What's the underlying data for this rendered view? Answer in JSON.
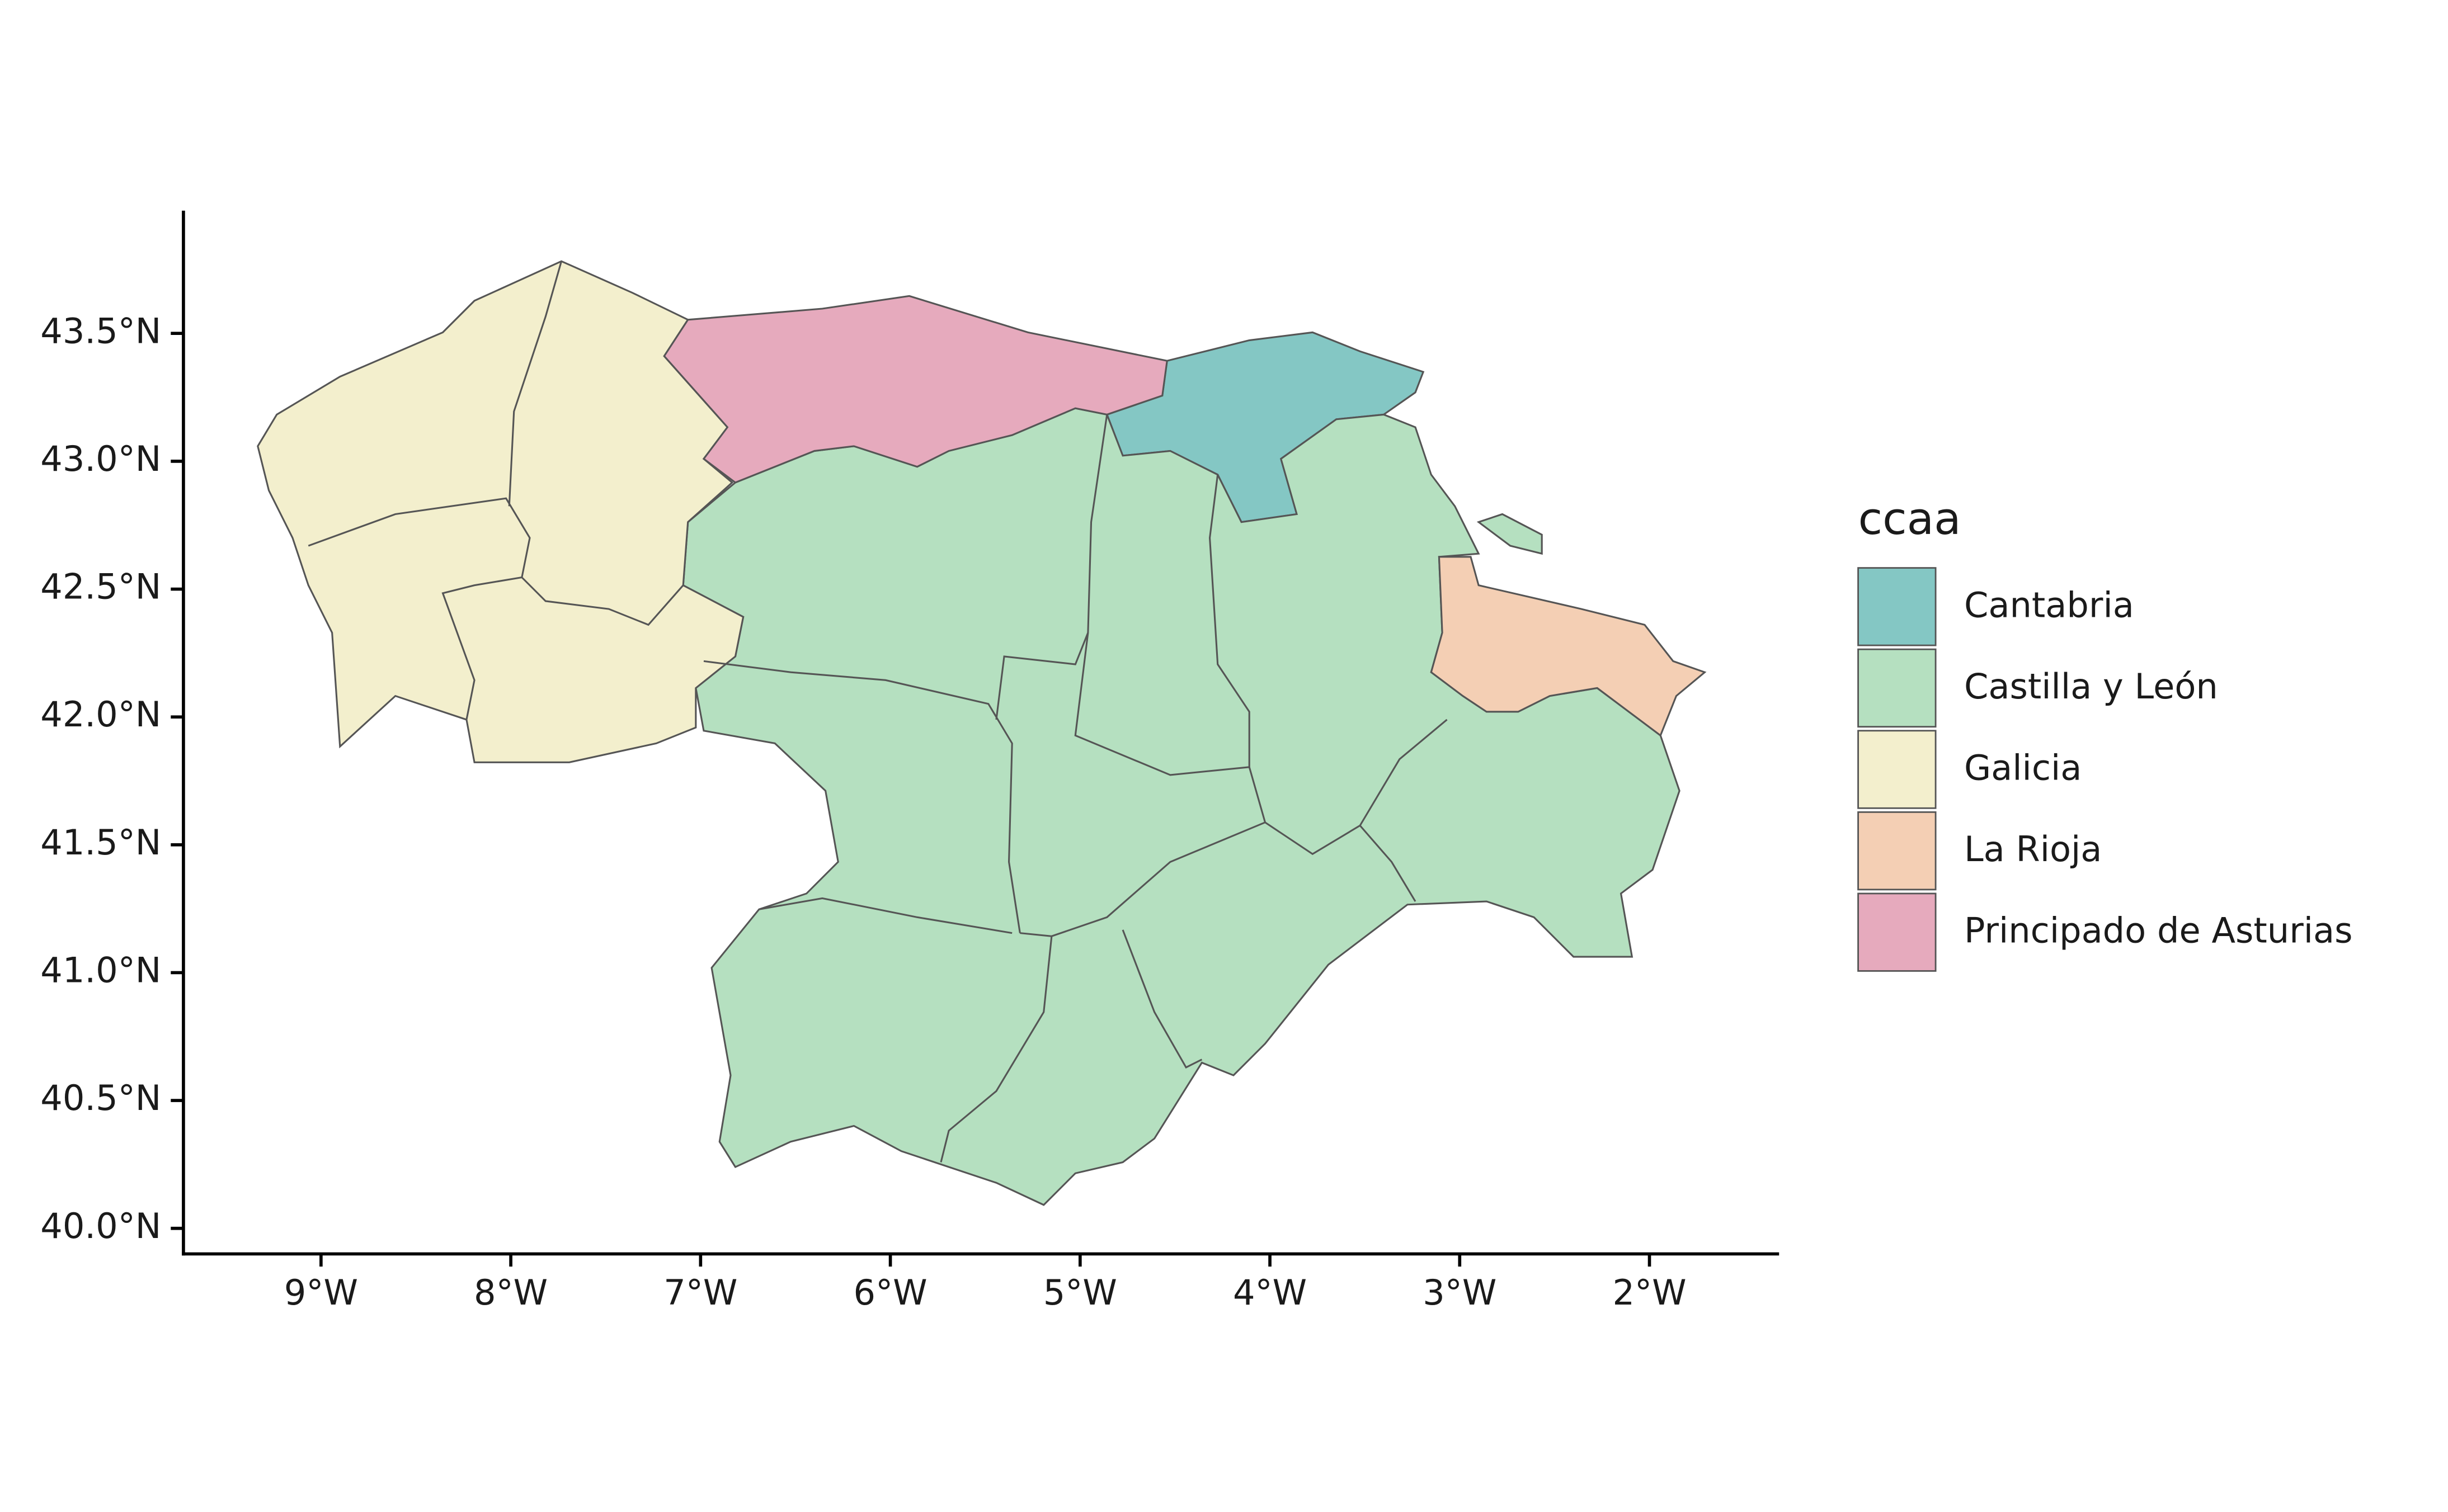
{
  "chart_data": {
    "type": "map",
    "xlim": [
      -9.725,
      -1.317
    ],
    "ylim": [
      39.9,
      43.98
    ],
    "xticks": [
      {
        "value": -9,
        "label": "9°W"
      },
      {
        "value": -8,
        "label": "8°W"
      },
      {
        "value": -7,
        "label": "7°W"
      },
      {
        "value": -6,
        "label": "6°W"
      },
      {
        "value": -5,
        "label": "5°W"
      },
      {
        "value": -4,
        "label": "4°W"
      },
      {
        "value": -3,
        "label": "3°W"
      },
      {
        "value": -2,
        "label": "2°W"
      }
    ],
    "yticks": [
      {
        "value": 40.0,
        "label": "40.0°N"
      },
      {
        "value": 40.5,
        "label": "40.5°N"
      },
      {
        "value": 41.0,
        "label": "41.0°N"
      },
      {
        "value": 41.5,
        "label": "41.5°N"
      },
      {
        "value": 42.0,
        "label": "42.0°N"
      },
      {
        "value": 42.5,
        "label": "42.5°N"
      },
      {
        "value": 43.0,
        "label": "43.0°N"
      },
      {
        "value": 43.5,
        "label": "43.5°N"
      }
    ],
    "legend_title": "ccaa",
    "series": [
      {
        "name": "Cantabria",
        "color": "#84c7c4"
      },
      {
        "name": "Castilla y León",
        "color": "#b5e0c0"
      },
      {
        "name": "Galicia",
        "color": "#f3efcd"
      },
      {
        "name": "La Rioja",
        "color": "#f4cfb4"
      },
      {
        "name": "Principado de Asturias",
        "color": "#e6aabd"
      }
    ]
  }
}
